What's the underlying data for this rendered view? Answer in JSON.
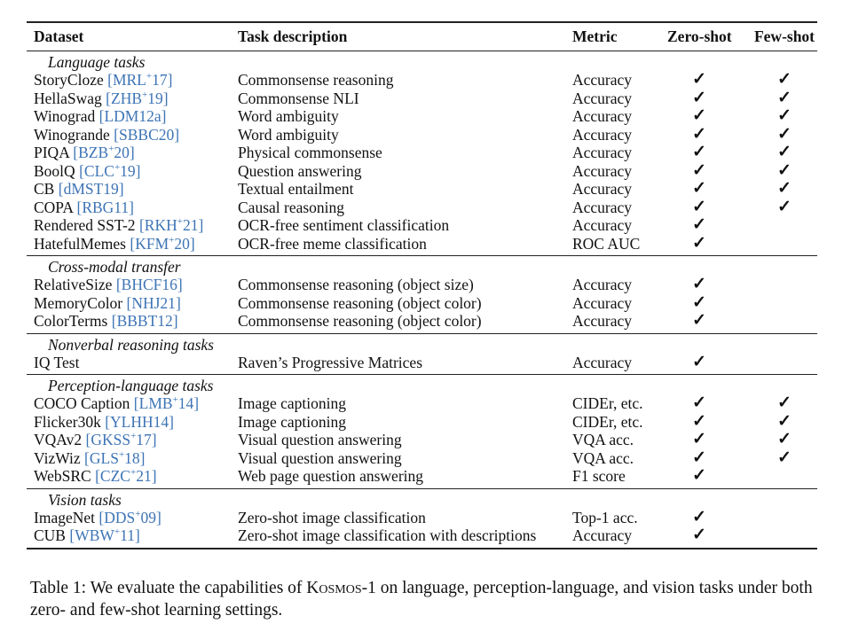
{
  "headers": {
    "dataset": "Dataset",
    "task": "Task description",
    "metric": "Metric",
    "zero": "Zero-shot",
    "few": "Few-shot"
  },
  "check_glyph": "✓",
  "cite_color": "#3d74b5",
  "sections": [
    {
      "title": "Language tasks",
      "rows": [
        {
          "dataset": "StoryCloze",
          "cite_a": "MRL",
          "cite_sup": "+",
          "cite_b": "17",
          "task": "Commonsense reasoning",
          "metric": "Accuracy",
          "zero": true,
          "few": true
        },
        {
          "dataset": "HellaSwag",
          "cite_a": "ZHB",
          "cite_sup": "+",
          "cite_b": "19",
          "task": "Commonsense NLI",
          "metric": "Accuracy",
          "zero": true,
          "few": true
        },
        {
          "dataset": "Winograd",
          "cite_a": "LDM12a",
          "cite_sup": "",
          "cite_b": "",
          "task": "Word ambiguity",
          "metric": "Accuracy",
          "zero": true,
          "few": true
        },
        {
          "dataset": "Winogrande",
          "cite_a": "SBBC20",
          "cite_sup": "",
          "cite_b": "",
          "task": "Word ambiguity",
          "metric": "Accuracy",
          "zero": true,
          "few": true
        },
        {
          "dataset": "PIQA",
          "cite_a": "BZB",
          "cite_sup": "+",
          "cite_b": "20",
          "task": "Physical commonsense",
          "metric": "Accuracy",
          "zero": true,
          "few": true
        },
        {
          "dataset": "BoolQ",
          "cite_a": "CLC",
          "cite_sup": "+",
          "cite_b": "19",
          "task": "Question answering",
          "metric": "Accuracy",
          "zero": true,
          "few": true
        },
        {
          "dataset": "CB",
          "cite_a": "dMST19",
          "cite_sup": "",
          "cite_b": "",
          "task": "Textual entailment",
          "metric": "Accuracy",
          "zero": true,
          "few": true
        },
        {
          "dataset": "COPA",
          "cite_a": "RBG11",
          "cite_sup": "",
          "cite_b": "",
          "task": "Causal reasoning",
          "metric": "Accuracy",
          "zero": true,
          "few": true
        },
        {
          "dataset": "Rendered SST-2",
          "cite_a": "RKH",
          "cite_sup": "+",
          "cite_b": "21",
          "task": "OCR-free sentiment classification",
          "metric": "Accuracy",
          "zero": true,
          "few": false
        },
        {
          "dataset": "HatefulMemes",
          "cite_a": "KFM",
          "cite_sup": "+",
          "cite_b": "20",
          "task": "OCR-free meme classification",
          "metric": "ROC AUC",
          "zero": true,
          "few": false
        }
      ]
    },
    {
      "title": "Cross-modal transfer",
      "rows": [
        {
          "dataset": "RelativeSize",
          "cite_a": "BHCF16",
          "cite_sup": "",
          "cite_b": "",
          "task": "Commonsense reasoning (object size)",
          "metric": "Accuracy",
          "zero": true,
          "few": false
        },
        {
          "dataset": "MemoryColor",
          "cite_a": "NHJ21",
          "cite_sup": "",
          "cite_b": "",
          "task": "Commonsense reasoning (object color)",
          "metric": "Accuracy",
          "zero": true,
          "few": false
        },
        {
          "dataset": "ColorTerms",
          "cite_a": "BBBT12",
          "cite_sup": "",
          "cite_b": "",
          "task": "Commonsense reasoning (object color)",
          "metric": "Accuracy",
          "zero": true,
          "few": false
        }
      ]
    },
    {
      "title": "Nonverbal reasoning tasks",
      "rows": [
        {
          "dataset": "IQ Test",
          "cite_a": "",
          "cite_sup": "",
          "cite_b": "",
          "task": "Raven’s Progressive Matrices",
          "metric": "Accuracy",
          "zero": true,
          "few": false
        }
      ]
    },
    {
      "title": "Perception-language tasks",
      "rows": [
        {
          "dataset": "COCO Caption",
          "cite_a": "LMB",
          "cite_sup": "+",
          "cite_b": "14",
          "task": "Image captioning",
          "metric": "CIDEr, etc.",
          "zero": true,
          "few": true
        },
        {
          "dataset": "Flicker30k",
          "cite_a": "YLHH14",
          "cite_sup": "",
          "cite_b": "",
          "task": "Image captioning",
          "metric": "CIDEr, etc.",
          "zero": true,
          "few": true
        },
        {
          "dataset": "VQAv2",
          "cite_a": "GKSS",
          "cite_sup": "+",
          "cite_b": "17",
          "task": "Visual question answering",
          "metric": "VQA acc.",
          "zero": true,
          "few": true
        },
        {
          "dataset": "VizWiz",
          "cite_a": "GLS",
          "cite_sup": "+",
          "cite_b": "18",
          "task": "Visual question answering",
          "metric": "VQA acc.",
          "zero": true,
          "few": true
        },
        {
          "dataset": "WebSRC",
          "cite_a": "CZC",
          "cite_sup": "+",
          "cite_b": "21",
          "task": "Web page question answering",
          "metric": "F1 score",
          "zero": true,
          "few": false
        }
      ]
    },
    {
      "title": "Vision tasks",
      "rows": [
        {
          "dataset": "ImageNet",
          "cite_a": "DDS",
          "cite_sup": "+",
          "cite_b": "09",
          "task": "Zero-shot image classification",
          "metric": "Top-1 acc.",
          "zero": true,
          "few": false
        },
        {
          "dataset": "CUB",
          "cite_a": "WBW",
          "cite_sup": "+",
          "cite_b": "11",
          "task": "Zero-shot image classification with descriptions",
          "metric": "Accuracy",
          "zero": true,
          "few": false
        }
      ]
    }
  ],
  "caption": {
    "prefix": "Table 1: We evaluate the capabilities of ",
    "model": "Kosmos-1",
    "suffix": " on language, perception-language, and vision tasks under both zero- and few-shot learning settings."
  }
}
